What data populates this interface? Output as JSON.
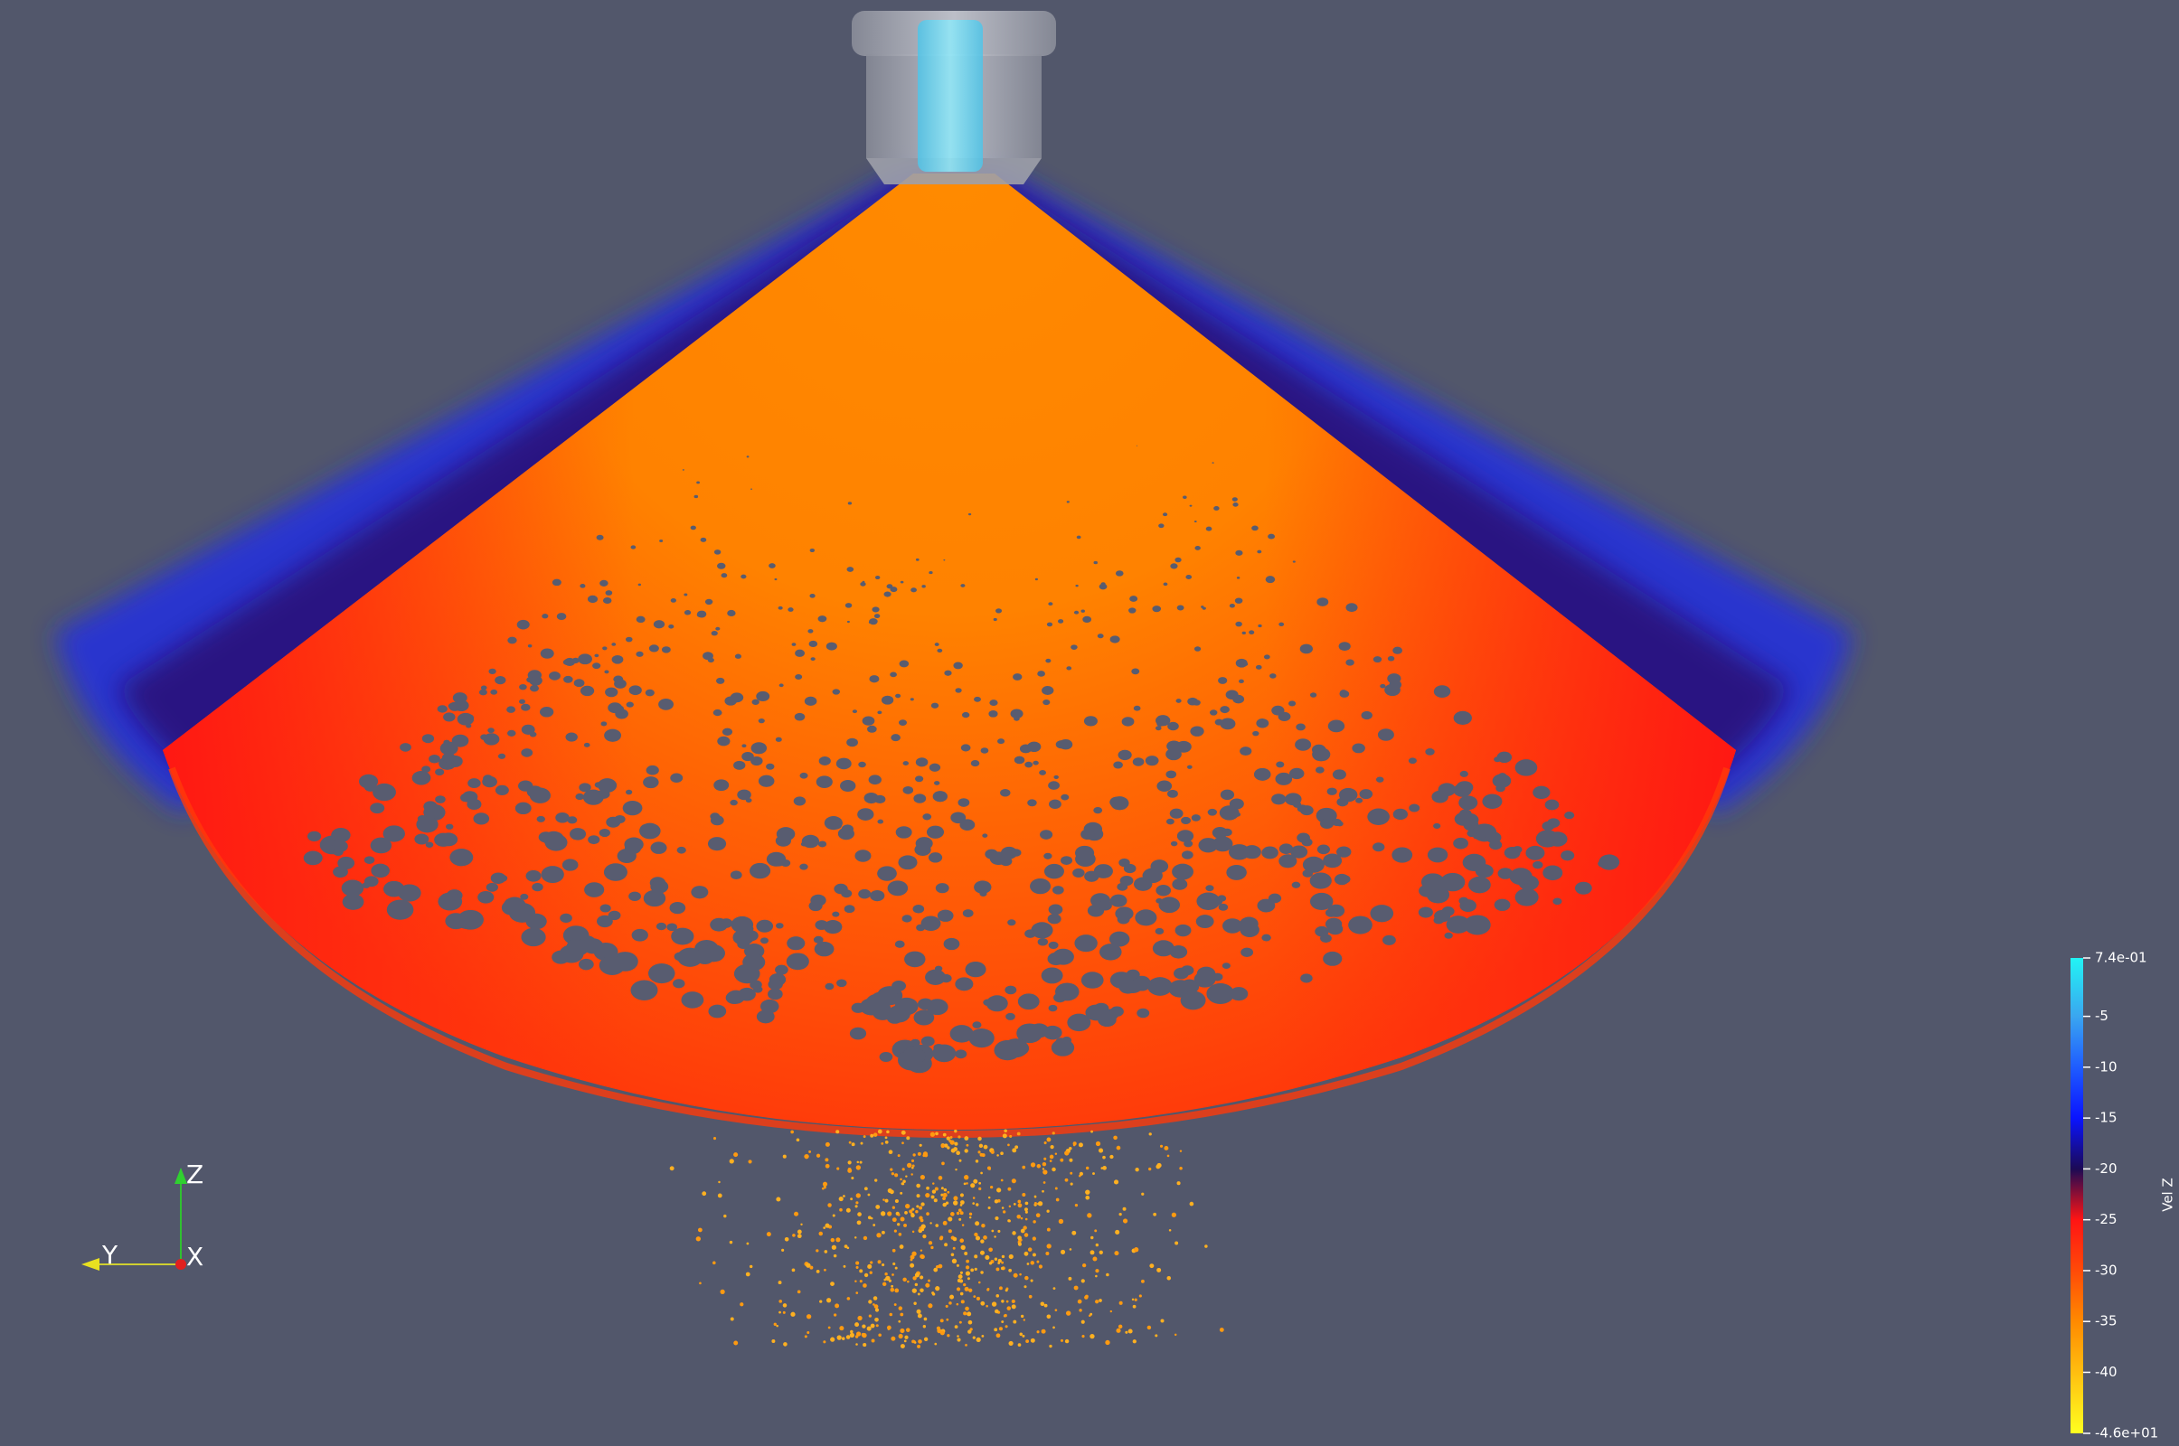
{
  "color_legend": {
    "title": "Vel Z",
    "lim": [
      -46,
      0.74
    ],
    "ticks": [
      {
        "value": 0.74,
        "label": "7.4e-01"
      },
      -5,
      -10,
      -15,
      -20,
      -25,
      -30,
      -35,
      -40,
      {
        "value": -46,
        "label": "-4.6e+01"
      }
    ],
    "colors": [
      "#22f4f4",
      "#3aa6f0",
      "#1f5cff",
      "#0a14ff",
      "#1c0a55",
      "#ff1414",
      "#ff4a08",
      "#ff8a00",
      "#ffbe10",
      "#ffff20"
    ]
  },
  "axes": {
    "z": "Z",
    "y": "Y",
    "x": "X"
  }
}
